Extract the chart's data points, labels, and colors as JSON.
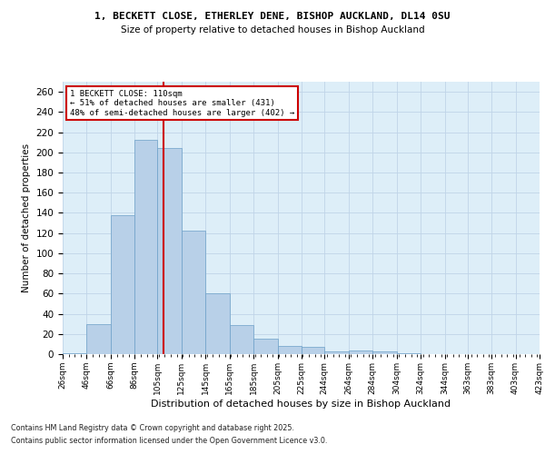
{
  "title1": "1, BECKETT CLOSE, ETHERLEY DENE, BISHOP AUCKLAND, DL14 0SU",
  "title2": "Size of property relative to detached houses in Bishop Auckland",
  "xlabel": "Distribution of detached houses by size in Bishop Auckland",
  "ylabel": "Number of detached properties",
  "bar_labels": [
    "26sqm",
    "46sqm",
    "66sqm",
    "86sqm",
    "105sqm",
    "125sqm",
    "145sqm",
    "165sqm",
    "185sqm",
    "205sqm",
    "225sqm",
    "244sqm",
    "264sqm",
    "284sqm",
    "304sqm",
    "324sqm",
    "344sqm",
    "363sqm",
    "383sqm",
    "403sqm",
    "423sqm"
  ],
  "counts": [
    1,
    30,
    138,
    212,
    204,
    122,
    60,
    29,
    15,
    8,
    7,
    3,
    4,
    3,
    1,
    0,
    0,
    0,
    0,
    0,
    0
  ],
  "bin_edges": [
    26,
    46,
    66,
    86,
    105,
    125,
    145,
    165,
    185,
    205,
    225,
    244,
    264,
    284,
    304,
    324,
    344,
    363,
    383,
    403,
    423
  ],
  "bar_color": "#b8d0e8",
  "bar_edge_color": "#6ca0c8",
  "grid_color": "#c0d4e8",
  "bg_color": "#ddeef8",
  "vline_x": 110,
  "vline_color": "#cc0000",
  "annotation_text": "1 BECKETT CLOSE: 110sqm\n← 51% of detached houses are smaller (431)\n48% of semi-detached houses are larger (402) →",
  "ylim": [
    0,
    270
  ],
  "yticks": [
    0,
    20,
    40,
    60,
    80,
    100,
    120,
    140,
    160,
    180,
    200,
    220,
    240,
    260
  ],
  "footnote1": "Contains HM Land Registry data © Crown copyright and database right 2025.",
  "footnote2": "Contains public sector information licensed under the Open Government Licence v3.0."
}
